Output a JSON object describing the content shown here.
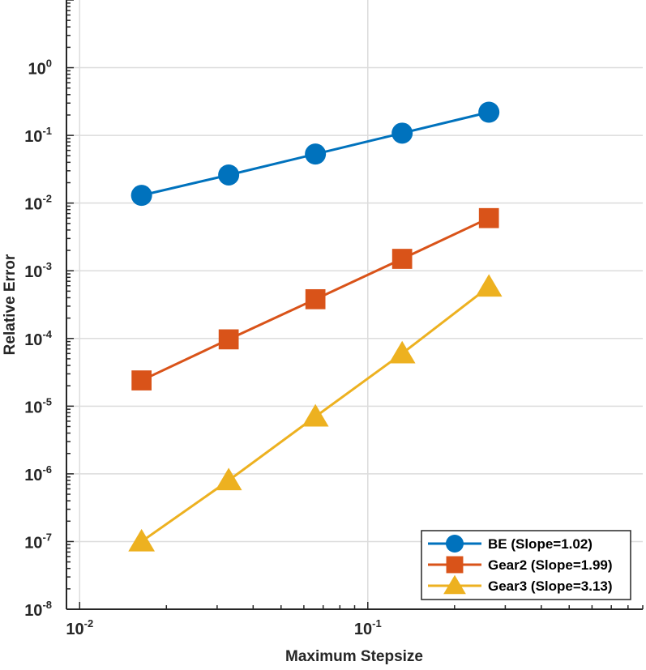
{
  "chart_data": {
    "type": "line",
    "scale": {
      "x": "log",
      "y": "log"
    },
    "title": "",
    "xlabel": "Maximum Stepsize",
    "ylabel": "Relative Error",
    "xlim": [
      0.009,
      0.9
    ],
    "ylim": [
      1e-08,
      10
    ],
    "grid": true,
    "x_ticks": [
      {
        "value": 0.01,
        "base": "10",
        "exp": "-2"
      },
      {
        "value": 0.1,
        "base": "10",
        "exp": "-1"
      }
    ],
    "y_ticks": [
      {
        "value": 1e-08,
        "base": "10",
        "exp": "-8"
      },
      {
        "value": 1e-07,
        "base": "10",
        "exp": "-7"
      },
      {
        "value": 1e-06,
        "base": "10",
        "exp": "-6"
      },
      {
        "value": 1e-05,
        "base": "10",
        "exp": "-5"
      },
      {
        "value": 0.0001,
        "base": "10",
        "exp": "-4"
      },
      {
        "value": 0.001,
        "base": "10",
        "exp": "-3"
      },
      {
        "value": 0.01,
        "base": "10",
        "exp": "-2"
      },
      {
        "value": 0.1,
        "base": "10",
        "exp": "-1"
      },
      {
        "value": 1,
        "base": "10",
        "exp": "0"
      }
    ],
    "x": [
      0.0164,
      0.0329,
      0.0658,
      0.1316,
      0.2632
    ],
    "series": [
      {
        "name": "BE (Slope=1.02)",
        "marker": "circle",
        "color": "#0072BD",
        "values": [
          0.013,
          0.026,
          0.053,
          0.108,
          0.22
        ]
      },
      {
        "name": "Gear2 (Slope=1.99)",
        "marker": "square",
        "color": "#D95319",
        "values": [
          2.4e-05,
          9.7e-05,
          0.00038,
          0.0015,
          0.006
        ]
      },
      {
        "name": "Gear3 (Slope=3.13)",
        "marker": "triangle",
        "color": "#EDB120",
        "values": [
          1e-07,
          8e-07,
          7e-06,
          6e-05,
          0.00058
        ]
      }
    ],
    "legend_position": "bottom-right"
  }
}
